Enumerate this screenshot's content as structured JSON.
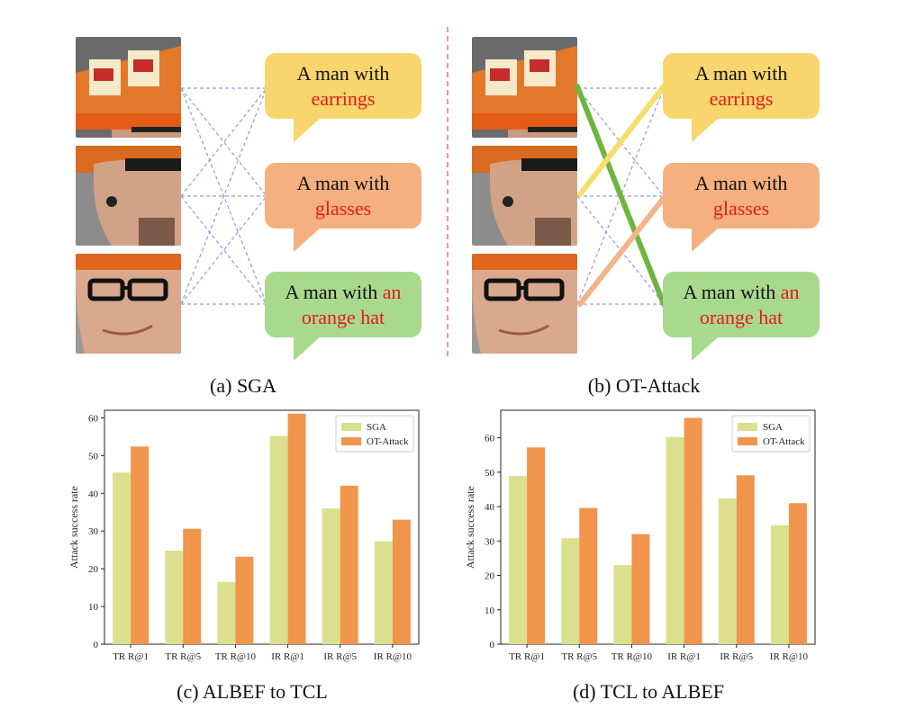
{
  "panels": {
    "a": {
      "caption": "(a) SGA"
    },
    "b": {
      "caption": "(b) OT-Attack"
    },
    "c": {
      "caption": "(c) ALBEF to TCL"
    },
    "d": {
      "caption": "(d) TCL to ALBEF"
    }
  },
  "captions_text": [
    {
      "prefix": "A man with",
      "highlight": "earrings"
    },
    {
      "prefix": "A man with",
      "highlight": "glasses"
    },
    {
      "prefix": "A man with",
      "highlight_inline": "an",
      "highlight": "orange hat"
    }
  ],
  "colors": {
    "bubble_yellow": "#f9d56e",
    "bubble_orange": "#f4b07f",
    "bubble_green": "#a9d98d",
    "highlight_red": "#e41b17",
    "dashed_blue": "#8a9fd4",
    "divider_red": "#e06060",
    "line_green": "#6fb43f",
    "line_yellow": "#f6de6b",
    "line_orange": "#f2b589",
    "bar_sga": "#dbe08f",
    "bar_ot": "#f0954b"
  },
  "chart_data": [
    {
      "type": "bar",
      "title": "",
      "xlabel": "",
      "ylabel": "Attack success rate",
      "categories": [
        "TR R@1",
        "TR R@5",
        "TR R@10",
        "IR R@1",
        "IR R@5",
        "IR R@10"
      ],
      "ylim": [
        0,
        62
      ],
      "yticks": [
        0,
        10,
        20,
        30,
        40,
        50,
        60
      ],
      "legend": "top-right",
      "grid": false,
      "series": [
        {
          "name": "SGA",
          "values": [
            45.5,
            24.8,
            16.5,
            55.2,
            36.0,
            27.3
          ]
        },
        {
          "name": "OT-Attack",
          "values": [
            52.4,
            30.6,
            23.2,
            61.1,
            42.0,
            33.0
          ]
        }
      ]
    },
    {
      "type": "bar",
      "title": "",
      "xlabel": "",
      "ylabel": "Attack success rate",
      "categories": [
        "TR R@1",
        "TR R@5",
        "TR R@10",
        "IR R@1",
        "IR R@5",
        "IR R@10"
      ],
      "ylim": [
        0,
        68
      ],
      "yticks": [
        0,
        10,
        20,
        30,
        40,
        50,
        60
      ],
      "legend": "top-right",
      "grid": false,
      "series": [
        {
          "name": "SGA",
          "values": [
            48.9,
            30.8,
            23.0,
            60.2,
            42.4,
            34.6
          ]
        },
        {
          "name": "OT-Attack",
          "values": [
            57.2,
            39.6,
            32.0,
            65.8,
            49.1,
            41.0
          ]
        }
      ]
    }
  ]
}
